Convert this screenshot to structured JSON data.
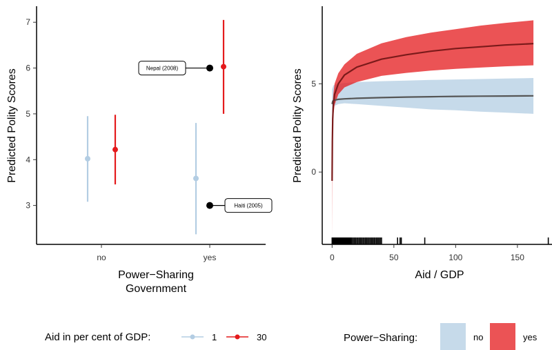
{
  "chart_data": [
    {
      "type": "scatter",
      "subtype": "point-range",
      "categories": [
        "no",
        "yes"
      ],
      "xlabel_lines": [
        "Power−Sharing",
        "Government"
      ],
      "ylabel": "Predicted Polity Scores",
      "ylim": [
        2.15,
        7.35
      ],
      "yticks": [
        3,
        4,
        5,
        6,
        7
      ],
      "grid": false,
      "legend": {
        "title": "Aid in per cent of GDP:",
        "position": "bottom",
        "items": [
          {
            "label": "1",
            "color": "#b3cde3"
          },
          {
            "label": "30",
            "color": "#e41a1c"
          }
        ]
      },
      "series": [
        {
          "name": "1",
          "color": "#b3cde3",
          "points": [
            {
              "category": "no",
              "estimate": 4.02,
              "lower": 3.08,
              "upper": 4.95
            },
            {
              "category": "yes",
              "estimate": 3.59,
              "lower": 2.37,
              "upper": 4.8
            }
          ]
        },
        {
          "name": "30",
          "color": "#e41a1c",
          "points": [
            {
              "category": "no",
              "estimate": 4.22,
              "lower": 3.46,
              "upper": 4.98
            },
            {
              "category": "yes",
              "estimate": 6.03,
              "lower": 5.0,
              "upper": 7.05
            }
          ]
        }
      ],
      "annotations": [
        {
          "label": "Nepal (2008)",
          "category": "yes",
          "y": 6.0,
          "side": "left"
        },
        {
          "label": "Haiti (2005)",
          "category": "yes",
          "y": 3.0,
          "side": "right"
        }
      ]
    },
    {
      "type": "line",
      "subtype": "ribbon",
      "xlabel": "Aid / GDP",
      "ylabel": "Predicted Polity Scores",
      "xlim": [
        -8,
        178
      ],
      "ylim": [
        -4.1,
        9.4
      ],
      "xticks": [
        0,
        50,
        100,
        150
      ],
      "yticks": [
        0,
        5
      ],
      "grid": false,
      "legend": {
        "title": "Power−Sharing:",
        "position": "bottom",
        "items": [
          {
            "label": "no",
            "color": "#b3cde3"
          },
          {
            "label": "yes",
            "color": "#e41a1c"
          }
        ]
      },
      "series": [
        {
          "name": "no",
          "fill": "#b3cde3",
          "line": "#555555",
          "x": [
            0,
            0.5,
            1,
            2,
            5,
            10,
            20,
            40,
            60,
            80,
            100,
            120,
            140,
            163
          ],
          "y": [
            3.85,
            4.0,
            4.05,
            4.08,
            4.12,
            4.15,
            4.18,
            4.22,
            4.25,
            4.27,
            4.29,
            4.3,
            4.31,
            4.32
          ],
          "lower": [
            2.8,
            3.4,
            3.6,
            3.75,
            3.85,
            3.9,
            3.85,
            3.75,
            3.65,
            3.55,
            3.5,
            3.42,
            3.37,
            3.3
          ],
          "upper": [
            4.7,
            4.8,
            4.9,
            4.95,
            5.0,
            5.05,
            5.1,
            5.15,
            5.18,
            5.22,
            5.25,
            5.27,
            5.3,
            5.33
          ]
        },
        {
          "name": "yes",
          "fill": "#e41a1c",
          "line": "#7a1a1a",
          "x": [
            0,
            0.2,
            0.5,
            1,
            2,
            5,
            10,
            20,
            40,
            60,
            80,
            100,
            120,
            140,
            163
          ],
          "y": [
            -0.5,
            1.8,
            3.0,
            3.8,
            4.4,
            5.0,
            5.5,
            5.95,
            6.4,
            6.65,
            6.85,
            7.0,
            7.1,
            7.2,
            7.28
          ],
          "lower": [
            -3.8,
            0.5,
            2.2,
            3.2,
            3.8,
            4.4,
            4.8,
            5.1,
            5.45,
            5.62,
            5.75,
            5.85,
            5.92,
            5.99,
            6.05
          ],
          "upper": [
            2.9,
            3.4,
            3.9,
            4.4,
            5.0,
            5.6,
            6.1,
            6.7,
            7.3,
            7.65,
            7.9,
            8.1,
            8.3,
            8.45,
            8.6
          ]
        }
      ],
      "rug_x": [
        0,
        0.5,
        1,
        1.5,
        2,
        2.5,
        3,
        3.5,
        4,
        4.5,
        5,
        5.5,
        6,
        6.5,
        7,
        7.5,
        8,
        8.5,
        9,
        9.5,
        10,
        10.5,
        11,
        11.5,
        12,
        12.5,
        13,
        13.5,
        14,
        14.5,
        15,
        15.5,
        16,
        17,
        18,
        19,
        20,
        21,
        22,
        23,
        24,
        25,
        26,
        27,
        28,
        29,
        30,
        31,
        32,
        33,
        34,
        35,
        36,
        37,
        38,
        39,
        40,
        53,
        55,
        56,
        75,
        175
      ]
    }
  ]
}
